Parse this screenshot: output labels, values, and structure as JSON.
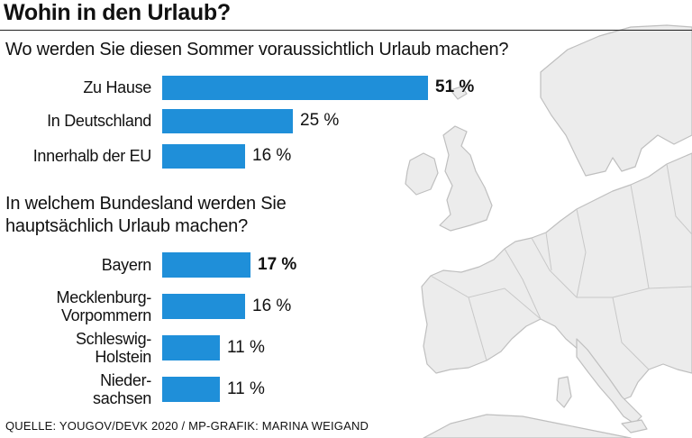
{
  "title": "Wohin in den Urlaub?",
  "source": "QUELLE: YOUGOV/DEVK 2020 / MP-GRAFIK: MARINA WEIGAND",
  "colors": {
    "bar": "#1f8fd9",
    "map_land": "#ececec",
    "map_border": "#bfbfbf"
  },
  "chart_data": [
    {
      "type": "bar",
      "orientation": "horizontal",
      "title": "Wo werden Sie diesen Sommer voraussichtlich Urlaub machen?",
      "categories": [
        "Zu Hause",
        "In Deutschland",
        "Innerhalb der EU"
      ],
      "values": [
        51,
        25,
        16
      ],
      "value_labels": [
        "51 %",
        "25 %",
        "16 %"
      ],
      "highlight_index": 0,
      "unit": "%"
    },
    {
      "type": "bar",
      "orientation": "horizontal",
      "title": "In welchem Bundesland werden Sie hauptsächlich Urlaub machen?",
      "categories": [
        "Bayern",
        "Mecklenburg-\nVorpommern",
        "Schleswig-\nHolstein",
        "Nieder-\nsachsen"
      ],
      "values": [
        17,
        16,
        11,
        11
      ],
      "value_labels": [
        "17 %",
        "16 %",
        "11 %",
        "11 %"
      ],
      "highlight_index": 0,
      "unit": "%"
    }
  ]
}
